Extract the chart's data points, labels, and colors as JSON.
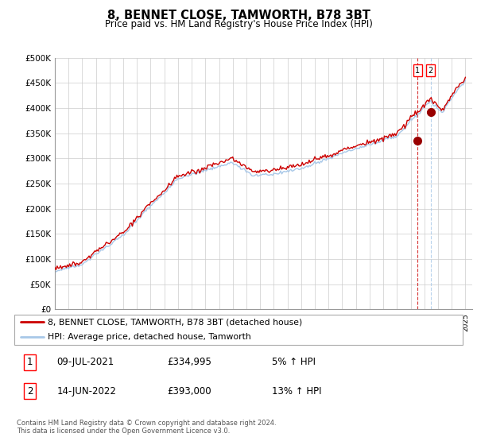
{
  "title": "8, BENNET CLOSE, TAMWORTH, B78 3BT",
  "subtitle": "Price paid vs. HM Land Registry's House Price Index (HPI)",
  "ylabel_ticks": [
    "£0",
    "£50K",
    "£100K",
    "£150K",
    "£200K",
    "£250K",
    "£300K",
    "£350K",
    "£400K",
    "£450K",
    "£500K"
  ],
  "ylim": [
    0,
    500000
  ],
  "xlim_start": 1995,
  "xlim_end": 2025.5,
  "sale1_date": 2021.52,
  "sale1_price": 334995,
  "sale1_label": "1",
  "sale2_date": 2022.45,
  "sale2_price": 393000,
  "sale2_label": "2",
  "hpi_color": "#a8c8e8",
  "price_color": "#cc0000",
  "sale_marker_color": "#990000",
  "vline1_color": "#cc0000",
  "vline2_color": "#a8c8e8",
  "legend1_label": "8, BENNET CLOSE, TAMWORTH, B78 3BT (detached house)",
  "legend2_label": "HPI: Average price, detached house, Tamworth",
  "table_row1": [
    "1",
    "09-JUL-2021",
    "£334,995",
    "5% ↑ HPI"
  ],
  "table_row2": [
    "2",
    "14-JUN-2022",
    "£393,000",
    "13% ↑ HPI"
  ],
  "footer": "Contains HM Land Registry data © Crown copyright and database right 2024.\nThis data is licensed under the Open Government Licence v3.0.",
  "background_color": "#ffffff",
  "grid_color": "#cccccc"
}
